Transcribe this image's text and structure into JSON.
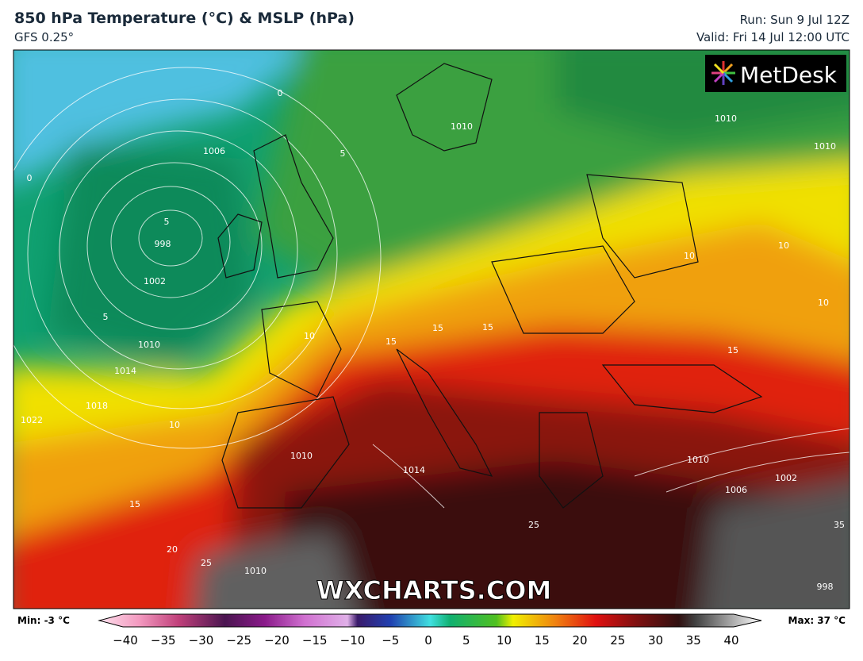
{
  "header": {
    "title": "850 hPa Temperature (°C) & MSLP (hPa)",
    "subtitle": "GFS 0.25°",
    "run": "Run: Sun 9 Jul 12Z",
    "valid": "Valid: Fri 14 Jul 12:00 UTC"
  },
  "logo": "MetDesk",
  "watermark": "WXCHARTS.COM",
  "contour_labels": [
    "0",
    "0",
    "1006",
    "5",
    "5",
    "998",
    "1002",
    "5",
    "1010",
    "1014",
    "1018",
    "1022",
    "10",
    "10",
    "15",
    "15",
    "15",
    "15",
    "10",
    "10",
    "10",
    "1010",
    "1010",
    "1010",
    "15",
    "20",
    "25",
    "1010",
    "1014",
    "1010",
    "1006",
    "1002",
    "25",
    "1010",
    "35",
    "998"
  ],
  "colorbar": {
    "min_label": "Min: -3 °C",
    "max_label": "Max: 37 °C",
    "ticks": [
      {
        "value": -40,
        "label": "−40"
      },
      {
        "value": -35,
        "label": "−35"
      },
      {
        "value": -30,
        "label": "−30"
      },
      {
        "value": -25,
        "label": "−25"
      },
      {
        "value": -20,
        "label": "−20"
      },
      {
        "value": -15,
        "label": "−15"
      },
      {
        "value": -10,
        "label": "−10"
      },
      {
        "value": -5,
        "label": "−5"
      },
      0,
      5,
      10,
      15,
      20,
      25,
      30,
      35,
      40
    ]
  }
}
